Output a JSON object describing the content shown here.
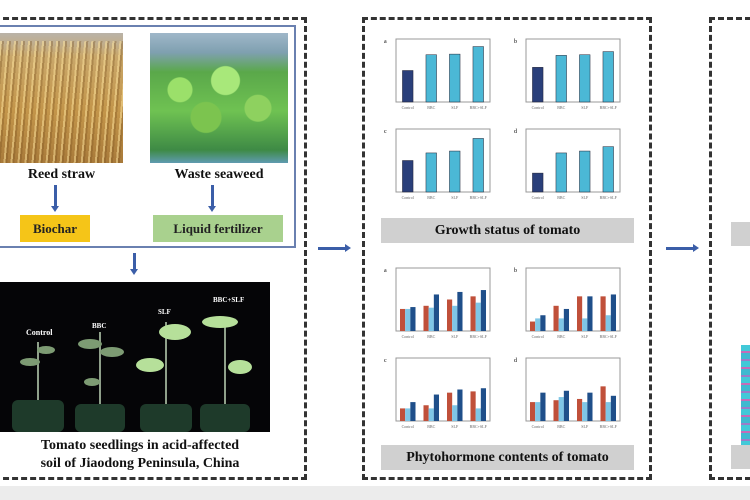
{
  "inputs": {
    "reed": {
      "label": "Reed straw",
      "product": "Biochar",
      "product_color": "#f5c518"
    },
    "seaweed": {
      "label": "Waste seaweed",
      "product": "Liquid fertilizer",
      "product_color": "#a9d18e"
    }
  },
  "seedlings": {
    "caption_line1": "Tomato seedlings in acid-affected",
    "caption_line2": "soil of Jiaodong Peninsula, China",
    "treatments": [
      "Control",
      "BBC",
      "SLF",
      "BBC+SLF"
    ]
  },
  "middle": {
    "growth_title": "Growth status of tomato",
    "hormone_title": "Phytohormone contents of tomato"
  },
  "colors": {
    "arrow": "#3b5ea8",
    "control_bar": "#2a3f7a",
    "treatment_bar": "#4bb8d6",
    "red": "#c0503a",
    "light_blue": "#7fc6e6",
    "dark_blue": "#1f4f8a"
  },
  "chart_data": [
    {
      "type": "bar",
      "panel": "a",
      "categories": [
        "Control",
        "BBC",
        "SLF",
        "BBC+SLF"
      ],
      "values": [
        0.5,
        0.75,
        0.76,
        0.88
      ]
    },
    {
      "type": "bar",
      "panel": "b",
      "categories": [
        "Control",
        "BBC",
        "SLF",
        "BBC+SLF"
      ],
      "values": [
        0.55,
        0.74,
        0.75,
        0.8
      ]
    },
    {
      "type": "bar",
      "panel": "c",
      "categories": [
        "Control",
        "BBC",
        "SLF",
        "BBC+SLF"
      ],
      "values": [
        0.5,
        0.62,
        0.65,
        0.85
      ]
    },
    {
      "type": "bar",
      "panel": "d",
      "categories": [
        "Control",
        "BBC",
        "SLF",
        "BBC+SLF"
      ],
      "values": [
        0.3,
        0.62,
        0.65,
        0.72
      ]
    },
    {
      "type": "bar",
      "panel": "a",
      "categories": [
        "Control",
        "BBC",
        "SLF",
        "BBC+SLF"
      ],
      "series": [
        {
          "values": [
            0.35,
            0.4,
            0.5,
            0.55
          ]
        },
        {
          "values": [
            0.35,
            0.37,
            0.4,
            0.45
          ]
        },
        {
          "values": [
            0.38,
            0.58,
            0.62,
            0.65
          ]
        }
      ]
    },
    {
      "type": "bar",
      "panel": "b",
      "categories": [
        "Control",
        "BBC",
        "SLF",
        "BBC+SLF"
      ],
      "series": [
        {
          "values": [
            0.15,
            0.4,
            0.55,
            0.55
          ]
        },
        {
          "values": [
            0.2,
            0.2,
            0.2,
            0.25
          ]
        },
        {
          "values": [
            0.25,
            0.35,
            0.55,
            0.58
          ]
        }
      ]
    },
    {
      "type": "bar",
      "panel": "c",
      "categories": [
        "Control",
        "BBC",
        "SLF",
        "BBC+SLF"
      ],
      "series": [
        {
          "values": [
            0.2,
            0.25,
            0.45,
            0.47
          ]
        },
        {
          "values": [
            0.2,
            0.2,
            0.25,
            0.2
          ]
        },
        {
          "values": [
            0.3,
            0.42,
            0.5,
            0.52
          ]
        }
      ]
    },
    {
      "type": "bar",
      "panel": "d",
      "categories": [
        "Control",
        "BBC",
        "SLF",
        "BBC+SLF"
      ],
      "series": [
        {
          "values": [
            0.3,
            0.33,
            0.35,
            0.55
          ]
        },
        {
          "values": [
            0.3,
            0.38,
            0.3,
            0.3
          ]
        },
        {
          "values": [
            0.45,
            0.48,
            0.45,
            0.4
          ]
        }
      ]
    }
  ]
}
